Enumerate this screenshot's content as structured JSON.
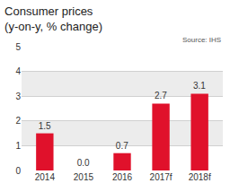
{
  "chart_data": {
    "type": "bar",
    "title": "Consumer prices",
    "subtitle": "(y-on-y, % change)",
    "categories": [
      "2014",
      "2015",
      "2016",
      "2017f",
      "2018f"
    ],
    "values": [
      1.5,
      0.0,
      0.7,
      2.7,
      3.1
    ],
    "value_labels": [
      "1.5",
      "0.0",
      "0.7",
      "2.7",
      "3.1"
    ],
    "color": "#e0112b",
    "ylim": [
      0,
      5
    ],
    "yticks": [
      0,
      1,
      2,
      3,
      4,
      5
    ],
    "grid": true,
    "data_labels": true,
    "annotations": [
      "Source: IHS"
    ]
  }
}
